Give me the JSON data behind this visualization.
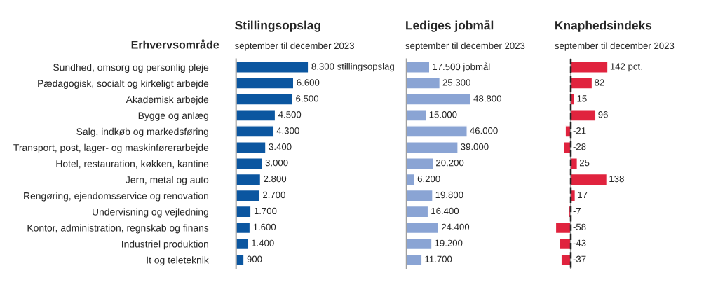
{
  "chart_data": [
    {
      "type": "bar",
      "orientation": "horizontal",
      "title": "Stillingsopslag",
      "subtitle": "september til december 2023",
      "ylabel": "Erhvervsområde",
      "tick_labels": "y",
      "categories": [
        "Sundhed, omsorg og personlig pleje",
        "Pædagogisk, socialt og kirkeligt arbejde",
        "Akademisk arbejde",
        "Bygge og anlæg",
        "Salg, indkøb og markedsføring",
        "Transport, post, lager- og maskinførerarbejde",
        "Hotel, restauration, køkken, kantine",
        "Jern, metal og auto",
        "Rengøring, ejendomsservice og renovation",
        "Undervisning og vejledning",
        "Kontor, administration, regnskab og finans",
        "Industriel produktion",
        "It og teleteknik"
      ],
      "values": [
        8300,
        6600,
        6500,
        4500,
        4300,
        3400,
        3000,
        2800,
        2700,
        1700,
        1600,
        1400,
        900
      ],
      "value_labels": [
        "8.300 stillingsopslag",
        "6.600",
        "6.500",
        "4.500",
        "4.300",
        "3.400",
        "3.000",
        "2.800",
        "2.700",
        "1.700",
        "1.600",
        "1.400",
        "900"
      ],
      "color": "#0b56a0"
    },
    {
      "type": "bar",
      "orientation": "horizontal",
      "title": "Lediges jobmål",
      "subtitle": "september til december 2023",
      "tick_labels": false,
      "categories": [
        null,
        null,
        null,
        null,
        null,
        null,
        null,
        null,
        null,
        null,
        null,
        null,
        null
      ],
      "values": [
        17500,
        25300,
        48800,
        15000,
        46000,
        39000,
        20200,
        6200,
        19800,
        16400,
        24400,
        19200,
        11700
      ],
      "value_labels": [
        "17.500 jobmål",
        "25.300",
        "48.800",
        "15.000",
        "46.000",
        "39.000",
        "20.200",
        "6.200",
        "19.800",
        "16.400",
        "24.400",
        "19.200",
        "11.700"
      ],
      "color": "#8aa4d4"
    },
    {
      "type": "bar",
      "orientation": "horizontal",
      "title": "Knaphedsindeks",
      "subtitle": "september til december 2023",
      "tick_labels": false,
      "categories": [
        null,
        null,
        null,
        null,
        null,
        null,
        null,
        null,
        null,
        null,
        null,
        null,
        null
      ],
      "values": [
        142,
        82,
        15,
        96,
        -21,
        -28,
        25,
        138,
        17,
        -7,
        -58,
        -43,
        -37
      ],
      "value_labels": [
        "142 pct.",
        "82",
        "15",
        "96",
        "-21",
        "-28",
        "25",
        "138",
        "17",
        "-7",
        "-58",
        "-43",
        "-37"
      ],
      "color": "#e0233e",
      "ref_lines": [
        {
          "axis": "x",
          "value": 0,
          "line_style": "dashed",
          "color": "#222222"
        }
      ]
    }
  ]
}
